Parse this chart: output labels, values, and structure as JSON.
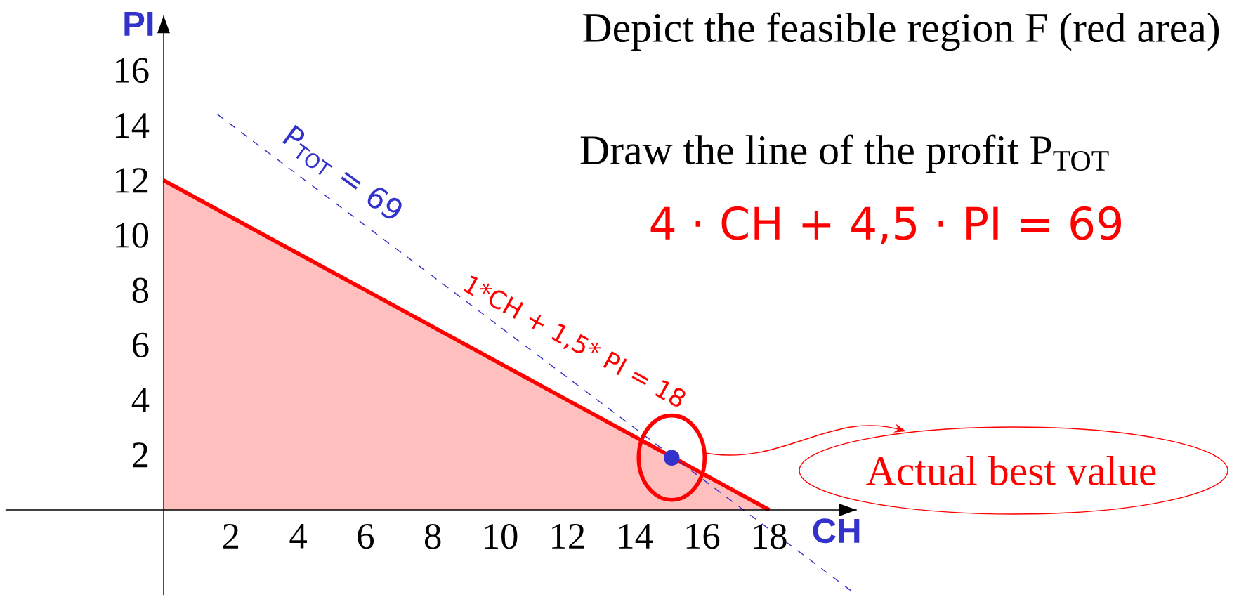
{
  "chart_data": {
    "type": "line",
    "title": "Depict the feasible region F (red area)",
    "xlabel": "CH",
    "ylabel": "PI",
    "xlim": [
      -4.7,
      20.6
    ],
    "ylim": [
      -3.1,
      18
    ],
    "xticks": [
      2,
      4,
      6,
      8,
      10,
      12,
      14,
      16,
      18
    ],
    "yticks": [
      2,
      4,
      6,
      8,
      10,
      12,
      14,
      16
    ],
    "series": [
      {
        "type": "area",
        "color": "#ff0000",
        "x": [
          0,
          18
        ],
        "values": [
          12,
          0
        ]
      },
      {
        "type": "line",
        "color": "#3333cc",
        "line_style": "dashed",
        "x": [
          1.6,
          20.6
        ],
        "values": [
          14.4,
          -3.1
        ]
      },
      {
        "type": "scatter",
        "line_style": "none",
        "color": "#3333cc",
        "marker": "circle",
        "x": [
          15.1
        ],
        "values": [
          1.9
        ]
      }
    ],
    "annotations": [
      "Draw the line of the profit P$_{TOT}$",
      "4 · CH + 4,5 · PI = 69",
      "P$_{TOT}$ = 69",
      "1*CH + 1,5* PI = 18",
      "Actual best value"
    ]
  }
}
